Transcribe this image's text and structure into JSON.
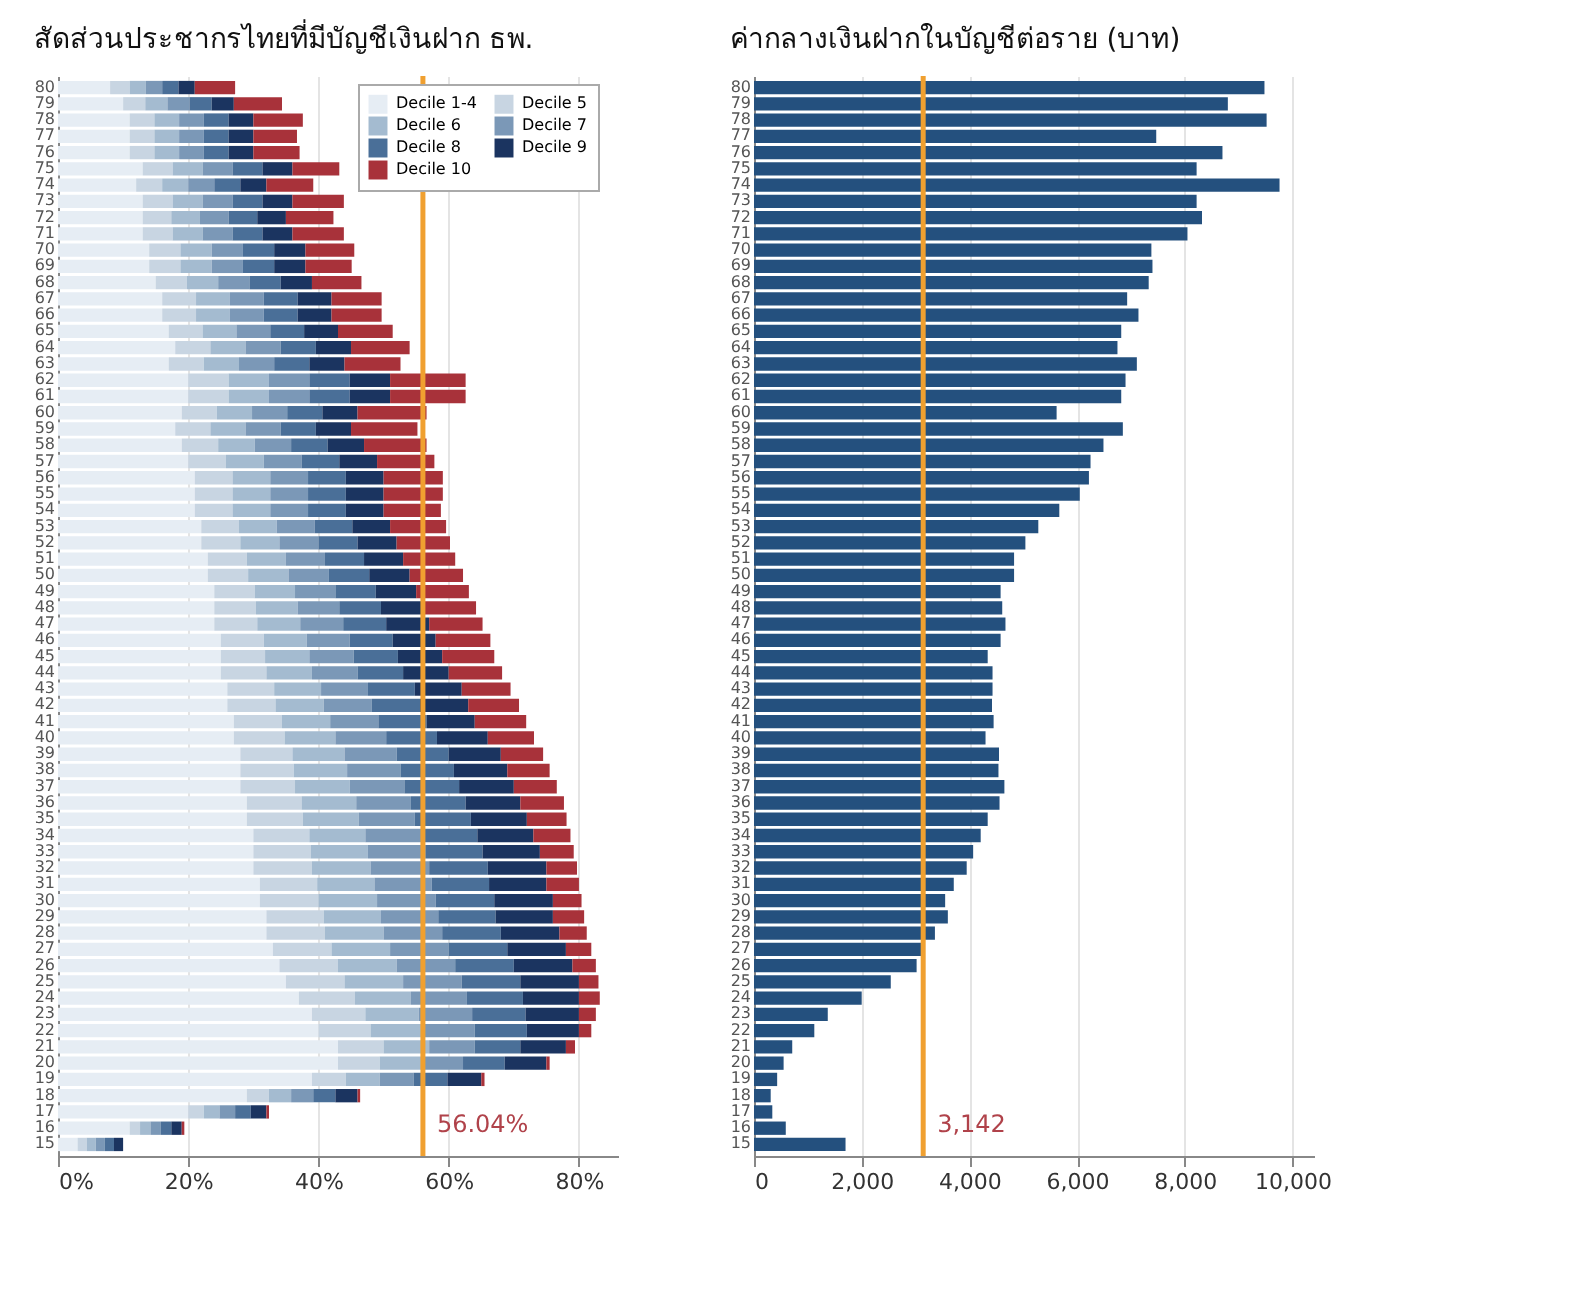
{
  "chart_data": [
    {
      "type": "bar",
      "title": "สัดส่วนประชากรไทยที่มีบัญชีเงินฝาก ธพ.",
      "orientation": "horizontal",
      "stacked": true,
      "grid": "x",
      "legend": "top right",
      "categories": [
        "80",
        "79",
        "78",
        "77",
        "76",
        "75",
        "74",
        "73",
        "72",
        "71",
        "70",
        "69",
        "68",
        "67",
        "66",
        "65",
        "64",
        "63",
        "62",
        "61",
        "60",
        "59",
        "58",
        "57",
        "56",
        "55",
        "54",
        "53",
        "52",
        "51",
        "50",
        "49",
        "48",
        "47",
        "46",
        "45",
        "44",
        "43",
        "42",
        "41",
        "40",
        "39",
        "38",
        "37",
        "36",
        "35",
        "34",
        "33",
        "32",
        "31",
        "30",
        "29",
        "28",
        "27",
        "26",
        "25",
        "24",
        "23",
        "22",
        "21",
        "20",
        "19",
        "18",
        "17",
        "16",
        "15"
      ],
      "xlim": [
        0,
        86
      ],
      "xticks": [
        {
          "value": 0,
          "label": "0%"
        },
        {
          "value": 20,
          "label": "20%"
        },
        {
          "value": 40,
          "label": "40%"
        },
        {
          "value": 60,
          "label": "60%"
        },
        {
          "value": 80,
          "label": "80%"
        }
      ],
      "ref_lines": [
        {
          "axis": "x",
          "value": 56.04,
          "label": "56.04%",
          "color": "#f0a030"
        }
      ],
      "series": [
        {
          "name": "Decile 1-4",
          "color": "#e6edf4",
          "values": [
            8,
            10,
            11,
            11,
            11,
            13,
            12,
            13,
            13,
            13,
            14,
            14,
            15,
            16,
            16,
            17,
            18,
            17,
            20,
            20,
            19,
            18,
            19,
            20,
            21,
            21,
            21,
            22,
            22,
            23,
            23,
            24,
            24,
            24,
            25,
            25,
            25,
            26,
            26,
            27,
            27,
            28,
            28,
            28,
            29,
            29,
            30,
            30,
            30,
            31,
            31,
            32,
            32,
            33,
            34,
            35,
            37,
            39,
            40,
            43,
            43,
            39,
            29,
            20,
            11,
            3
          ]
        },
        {
          "name": "Decile 5",
          "color": "#c8d5e2",
          "values": [
            3,
            3.4,
            3.8,
            3.8,
            3.8,
            4.6,
            4,
            4.6,
            4.4,
            4.6,
            4.8,
            4.8,
            4.8,
            5.2,
            5.2,
            5.2,
            5.4,
            5.4,
            6.2,
            6.2,
            5.4,
            5.4,
            5.6,
            5.8,
            5.8,
            5.8,
            5.8,
            5.8,
            6,
            6,
            6.2,
            6.2,
            6.4,
            6.6,
            6.6,
            6.8,
            7,
            7.2,
            7.4,
            7.4,
            7.8,
            8,
            8.2,
            8.4,
            8.4,
            8.6,
            8.6,
            8.8,
            9,
            8.8,
            9,
            8.8,
            9,
            9,
            9,
            9,
            8.6,
            8.2,
            8,
            7,
            6.4,
            5.2,
            3.4,
            2.4,
            1.6,
            1.4
          ]
        },
        {
          "name": "Decile 6",
          "color": "#a4bbd0",
          "values": [
            2.5,
            3.4,
            3.8,
            3.8,
            3.8,
            4.6,
            4,
            4.6,
            4.4,
            4.6,
            4.8,
            4.8,
            4.8,
            5.2,
            5.2,
            5.2,
            5.4,
            5.4,
            6.2,
            6.2,
            5.4,
            5.4,
            5.6,
            5.8,
            5.8,
            5.8,
            5.8,
            5.8,
            6,
            6,
            6.2,
            6.2,
            6.4,
            6.6,
            6.6,
            6.8,
            7,
            7.2,
            7.4,
            7.4,
            7.8,
            8,
            8.2,
            8.4,
            8.4,
            8.6,
            8.6,
            8.8,
            9,
            8.8,
            9,
            8.8,
            9,
            9,
            9,
            9,
            8.6,
            8.2,
            8,
            7,
            6.4,
            5.2,
            3.4,
            2.4,
            1.6,
            1.4
          ]
        },
        {
          "name": "Decile 7",
          "color": "#7b98b7",
          "values": [
            2.5,
            3.4,
            3.8,
            3.8,
            3.8,
            4.6,
            4,
            4.6,
            4.4,
            4.6,
            4.8,
            4.8,
            4.8,
            5.2,
            5.2,
            5.2,
            5.4,
            5.4,
            6.2,
            6.2,
            5.4,
            5.4,
            5.6,
            5.8,
            5.8,
            5.8,
            5.8,
            5.8,
            6,
            6,
            6.2,
            6.2,
            6.4,
            6.6,
            6.6,
            6.8,
            7,
            7.2,
            7.4,
            7.4,
            7.8,
            8,
            8.2,
            8.4,
            8.4,
            8.6,
            8.6,
            8.8,
            9,
            8.8,
            9,
            8.8,
            9,
            9,
            9,
            9,
            8.6,
            8.2,
            8,
            7,
            6.4,
            5.2,
            3.4,
            2.4,
            1.6,
            1.4
          ]
        },
        {
          "name": "Decile 8",
          "color": "#4a6f98",
          "values": [
            2.5,
            3.4,
            3.8,
            3.8,
            3.8,
            4.6,
            4,
            4.6,
            4.4,
            4.6,
            4.8,
            4.8,
            4.8,
            5.2,
            5.2,
            5.2,
            5.4,
            5.4,
            6.2,
            6.2,
            5.4,
            5.4,
            5.6,
            5.8,
            5.8,
            5.8,
            5.8,
            5.8,
            6,
            6,
            6.2,
            6.2,
            6.4,
            6.6,
            6.6,
            6.8,
            7,
            7.2,
            7.4,
            7.4,
            7.8,
            8,
            8.2,
            8.4,
            8.4,
            8.6,
            8.6,
            8.8,
            9,
            8.8,
            9,
            8.8,
            9,
            9,
            9,
            9,
            8.6,
            8.2,
            8,
            7,
            6.4,
            5.2,
            3.4,
            2.4,
            1.6,
            1.4
          ]
        },
        {
          "name": "Decile 9",
          "color": "#1b3460",
          "values": [
            2.5,
            3.4,
            3.8,
            3.8,
            3.8,
            4.6,
            4,
            4.6,
            4.4,
            4.6,
            4.8,
            4.8,
            4.8,
            5.2,
            5.2,
            5.2,
            5.4,
            5.4,
            6.2,
            6.2,
            5.4,
            5.4,
            5.6,
            5.8,
            5.8,
            5.8,
            5.8,
            5.8,
            6,
            6,
            6.2,
            6.2,
            6.4,
            6.6,
            6.6,
            6.8,
            7,
            7.2,
            7.4,
            7.4,
            7.8,
            8,
            8.2,
            8.4,
            8.4,
            8.6,
            8.6,
            8.8,
            9,
            8.8,
            9,
            8.8,
            9,
            9,
            9,
            9,
            8.6,
            8.2,
            8,
            7,
            6.4,
            5.2,
            3.4,
            2.4,
            1.6,
            1.4
          ]
        },
        {
          "name": "Decile 10",
          "color": "#a8323a",
          "values": [
            6.2,
            7.4,
            7.6,
            6.7,
            7.1,
            7.2,
            7.2,
            7.9,
            7.3,
            7.9,
            7.5,
            7.1,
            7.6,
            7.7,
            7.7,
            8.4,
            9,
            8.6,
            11.6,
            11.6,
            10.6,
            10.2,
            9.6,
            8.8,
            9.1,
            9.1,
            8.8,
            8.6,
            8.2,
            8,
            8.2,
            8.1,
            8.2,
            8.2,
            8.4,
            8,
            8.2,
            7.5,
            7.8,
            7.9,
            7.1,
            6.5,
            6.5,
            6.6,
            6.7,
            6.1,
            5.7,
            5.2,
            4.7,
            5,
            4.4,
            4.8,
            4.2,
            3.9,
            3.6,
            3,
            3.2,
            2.6,
            1.9,
            1.4,
            0.5,
            0.5,
            0.4,
            0.4,
            0.4,
            0
          ]
        }
      ]
    },
    {
      "type": "bar",
      "title": "ค่ากลางเงินฝากในบัญชีต่อราย (บาท)",
      "orientation": "horizontal",
      "grid": "x",
      "categories": [
        "80",
        "79",
        "78",
        "77",
        "76",
        "75",
        "74",
        "73",
        "72",
        "71",
        "70",
        "69",
        "68",
        "67",
        "66",
        "65",
        "64",
        "63",
        "62",
        "61",
        "60",
        "59",
        "58",
        "57",
        "56",
        "55",
        "54",
        "53",
        "52",
        "51",
        "50",
        "49",
        "48",
        "47",
        "46",
        "45",
        "44",
        "43",
        "42",
        "41",
        "40",
        "39",
        "38",
        "37",
        "36",
        "35",
        "34",
        "33",
        "32",
        "31",
        "30",
        "29",
        "28",
        "27",
        "26",
        "25",
        "24",
        "23",
        "22",
        "21",
        "20",
        "19",
        "18",
        "17",
        "16",
        "15"
      ],
      "xlim": [
        0,
        10400
      ],
      "xticks": [
        0,
        {
          "value": 2000,
          "label": "2,000"
        },
        {
          "value": 4000,
          "label": "4,000"
        },
        {
          "value": 6000,
          "label": "6,000"
        },
        {
          "value": 8000,
          "label": "8,000"
        },
        {
          "value": 10000,
          "label": "10,000"
        }
      ],
      "ref_lines": [
        {
          "axis": "x",
          "value": 3142,
          "label": "3,142",
          "color": "#f0a030"
        }
      ],
      "series": [
        {
          "color": "#24507e",
          "values": [
            9480,
            8800,
            9520,
            7470,
            8700,
            8220,
            9760,
            8220,
            8320,
            8050,
            7380,
            7400,
            7330,
            6930,
            7140,
            6820,
            6750,
            7110,
            6900,
            6820,
            5620,
            6850,
            6490,
            6250,
            6220,
            6050,
            5670,
            5280,
            5040,
            4830,
            4830,
            4580,
            4610,
            4670,
            4580,
            4340,
            4430,
            4430,
            4420,
            4450,
            4300,
            4550,
            4540,
            4650,
            4560,
            4340,
            4210,
            4070,
            3950,
            3710,
            3550,
            3600,
            3360,
            3140,
            3020,
            2540,
            2000,
            1370,
            1120,
            710,
            550,
            430,
            310,
            340,
            590,
            1700
          ]
        }
      ]
    }
  ]
}
